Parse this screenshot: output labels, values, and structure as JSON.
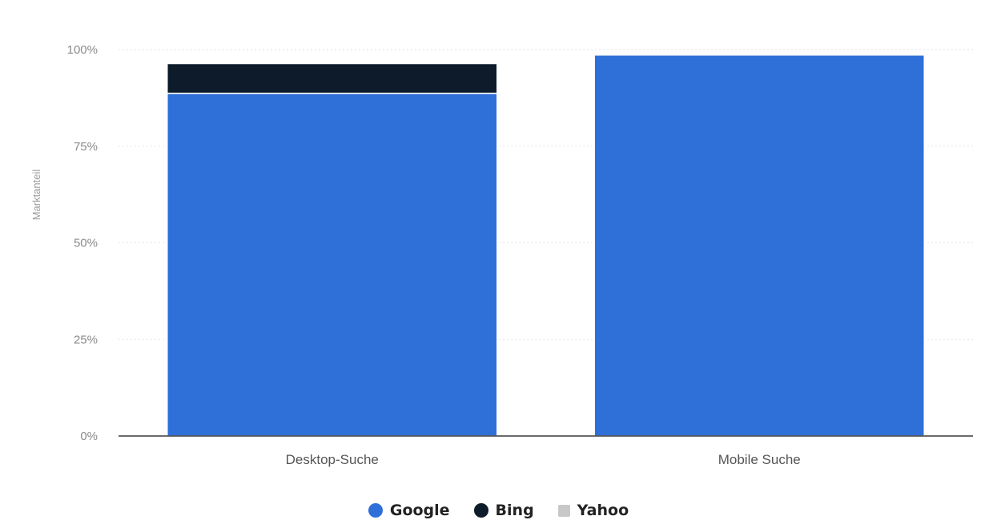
{
  "chart_data": {
    "type": "bar",
    "stacked": true,
    "title": "",
    "xlabel": "",
    "ylabel": "Marktanteil",
    "categories": [
      "Desktop-Suche",
      "Mobile Suche"
    ],
    "series": [
      {
        "name": "Google",
        "color": "#2f6fd8",
        "values": [
          88.7,
          98.6
        ]
      },
      {
        "name": "Bing",
        "color": "#0d1b2a",
        "values": [
          7.7,
          0.0
        ]
      },
      {
        "name": "Yahoo",
        "color": "#c8c8c8",
        "values": [
          0.3,
          0.2
        ]
      }
    ],
    "ylim": [
      0,
      100
    ],
    "yticks": [
      0,
      25,
      50,
      75,
      100
    ],
    "ytick_labels": [
      "0%",
      "25%",
      "50%",
      "75%",
      "100%"
    ],
    "grid": true,
    "legend_position": "bottom-center"
  }
}
